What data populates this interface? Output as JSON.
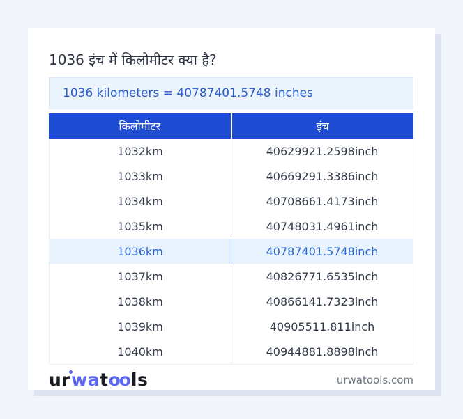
{
  "page": {
    "title": "1036 इंच में किलोमीटर क्या है?"
  },
  "result_box": {
    "text": "1036 kilometers = 40787401.5748 inches"
  },
  "table": {
    "headers": [
      "किलोमीटर",
      "इंच"
    ],
    "rows": [
      {
        "km": "1032km",
        "inch": "40629921.2598inch",
        "highlighted": false
      },
      {
        "km": "1033km",
        "inch": "40669291.3386inch",
        "highlighted": false
      },
      {
        "km": "1034km",
        "inch": "40708661.4173inch",
        "highlighted": false
      },
      {
        "km": "1035km",
        "inch": "40748031.4961inch",
        "highlighted": false
      },
      {
        "km": "1036km",
        "inch": "40787401.5748inch",
        "highlighted": true
      },
      {
        "km": "1037km",
        "inch": "40826771.6535inch",
        "highlighted": false
      },
      {
        "km": "1038km",
        "inch": "40866141.7323inch",
        "highlighted": false
      },
      {
        "km": "1039km",
        "inch": "40905511.811inch",
        "highlighted": false
      },
      {
        "km": "1040km",
        "inch": "40944881.8898inch",
        "highlighted": false
      }
    ]
  },
  "footer": {
    "logo": {
      "part1": "ur",
      "part2": "wa",
      "part3": "t",
      "part4": "oo",
      "part5": "ls"
    },
    "site_link": "urwatools.com"
  },
  "colors": {
    "page_background": "#f1f4f9",
    "card_shadow": "#dde3f1",
    "header_blue": "#1e4cd3",
    "result_text_blue": "#2b5ec8",
    "result_box_bg": "#ebf3fc",
    "highlight_row_bg": "#e9f3fd",
    "highlight_text_blue": "#2965cd",
    "logo_blue": "#5b67f2",
    "title_text": "#2b3342"
  }
}
